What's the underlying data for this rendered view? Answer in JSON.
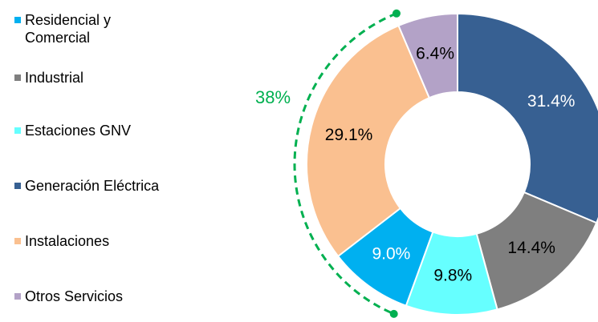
{
  "chart_data": {
    "type": "donut",
    "categories": [
      "Generación Eléctrica",
      "Industrial",
      "Estaciones GNV",
      "Residencial y Comercial",
      "Instalaciones",
      "Otros Servicios"
    ],
    "values": [
      31.4,
      14.4,
      9.8,
      9.0,
      29.1,
      6.4
    ],
    "value_labels": [
      "31.4%",
      "14.4%",
      "9.8%",
      "9.0%",
      "29.1%",
      "6.4%"
    ],
    "colors": [
      "#376092",
      "#7f7f7f",
      "#66ffff",
      "#00b0f0",
      "#fac090",
      "#b3a2c7"
    ],
    "label_colors": [
      "#ffffff",
      "#000000",
      "#000000",
      "#ffffff",
      "#000000",
      "#000000"
    ],
    "annotations": [
      {
        "text": "38%",
        "color": "#00b050"
      }
    ],
    "legend": "left"
  }
}
